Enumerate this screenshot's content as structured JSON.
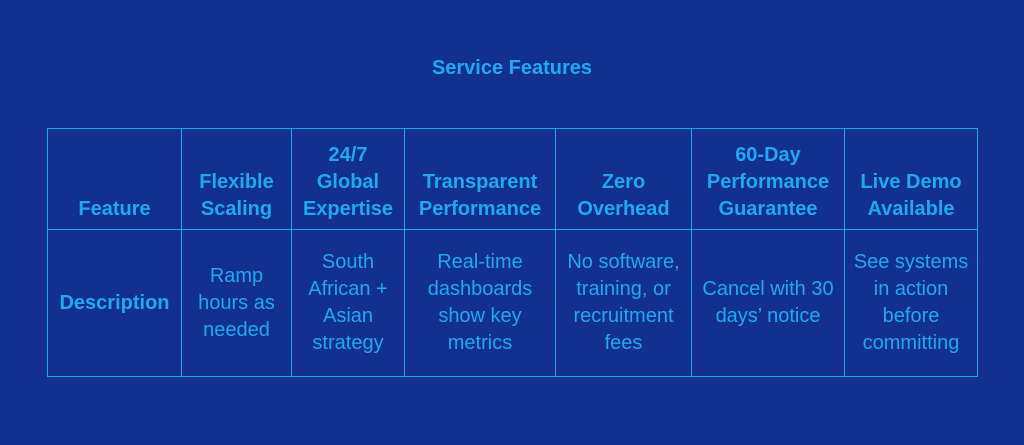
{
  "title": "Service Features",
  "table": {
    "rows": [
      [
        "Feature",
        "Flexible Scaling",
        "24/7 Global Expertise",
        "Transparent Performance",
        "Zero Overhead",
        "60-Day Performance Guarantee",
        "Live Demo Available"
      ],
      [
        "Description",
        "Ramp hours as needed",
        "South African + Asian strategy",
        "Real-time dashboards show key metrics",
        "No software, training, or recruitment fees",
        "Cancel with 30 days’ notice",
        "See systems in action before committing"
      ]
    ]
  }
}
